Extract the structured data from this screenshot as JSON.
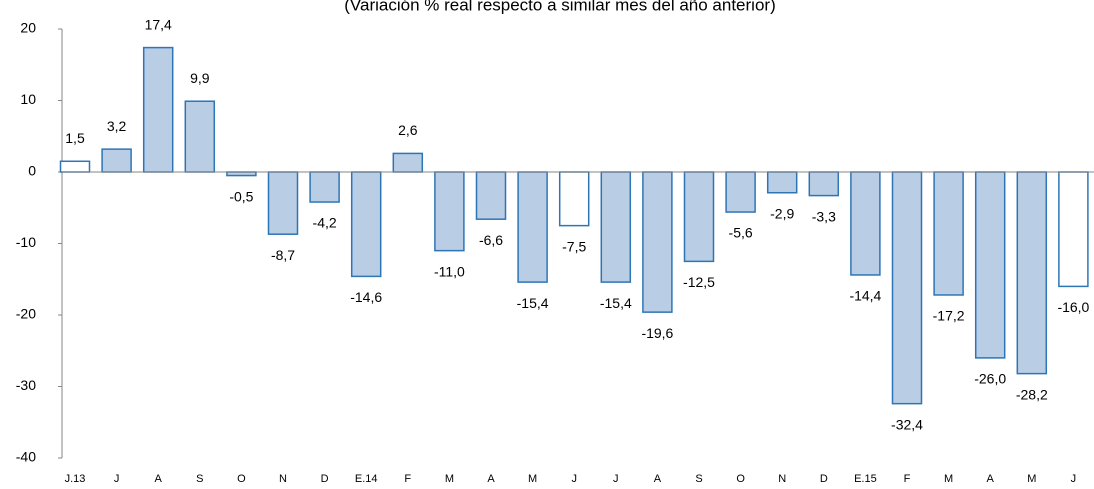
{
  "chart_data": {
    "type": "bar",
    "subtitle": "(Variación % real respecto a similar mes del año anterior)",
    "categories": [
      "J.13",
      "J",
      "A",
      "S",
      "O",
      "N",
      "D",
      "E.14",
      "F",
      "M",
      "A",
      "M",
      "J",
      "J",
      "A",
      "S",
      "O",
      "N",
      "D",
      "E.15",
      "F",
      "M",
      "A",
      "M",
      "J"
    ],
    "values": [
      1.5,
      3.2,
      17.4,
      9.9,
      -0.5,
      -8.7,
      -4.2,
      -14.6,
      2.6,
      -11.0,
      -6.6,
      -15.4,
      -7.5,
      -15.4,
      -19.6,
      -12.5,
      -5.6,
      -2.9,
      -3.3,
      -14.4,
      -32.4,
      -17.2,
      -26.0,
      -28.2,
      -16.0
    ],
    "value_labels": [
      "1,5",
      "3,2",
      "17,4",
      "9,9",
      "-0,5",
      "-8,7",
      "-4,2",
      "-14,6",
      "2,6",
      "-11,0",
      "-6,6",
      "-15,4",
      "-7,5",
      "-15,4",
      "-19,6",
      "-12,5",
      "-5,6",
      "-2,9",
      "-3,3",
      "-14,4",
      "-32,4",
      "-17,2",
      "-26,0",
      "-28,2",
      "-16,0"
    ],
    "colors": [
      "#ffffff",
      "#b9cde5",
      "#b9cde5",
      "#b9cde5",
      "#b9cde5",
      "#b9cde5",
      "#b9cde5",
      "#b9cde5",
      "#b9cde5",
      "#b9cde5",
      "#b9cde5",
      "#b9cde5",
      "#ffffff",
      "#b9cde5",
      "#b9cde5",
      "#b9cde5",
      "#b9cde5",
      "#b9cde5",
      "#b9cde5",
      "#b9cde5",
      "#b9cde5",
      "#b9cde5",
      "#b9cde5",
      "#b9cde5",
      "#ffffff"
    ],
    "edge_color": "#2e75b6",
    "ylim": [
      -40,
      20
    ],
    "yticks": [
      -40,
      -30,
      -20,
      -10,
      0,
      10,
      20
    ],
    "grid": false
  }
}
